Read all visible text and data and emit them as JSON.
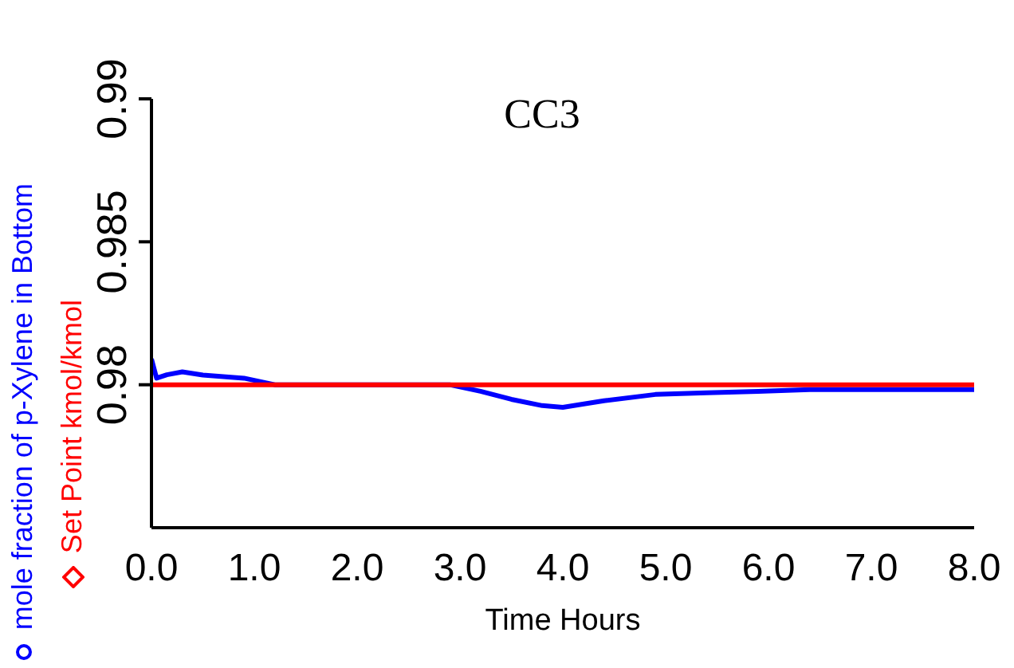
{
  "chart_data": {
    "type": "line",
    "title": "CC3",
    "xlabel": "Time Hours",
    "xlim": [
      0,
      8
    ],
    "xticks": [
      {
        "value": 0,
        "label": "0.0"
      },
      {
        "value": 1,
        "label": "1.0"
      },
      {
        "value": 2,
        "label": "2.0"
      },
      {
        "value": 3,
        "label": "3.0"
      },
      {
        "value": 4,
        "label": "4.0"
      },
      {
        "value": 5,
        "label": "5.0"
      },
      {
        "value": 6,
        "label": "6.0"
      },
      {
        "value": 7,
        "label": "7.0"
      },
      {
        "value": 8,
        "label": "8.0"
      }
    ],
    "ylim": [
      0.975,
      0.99
    ],
    "yticks": [
      0.98,
      0.985,
      0.99
    ],
    "legend": "left",
    "marker": "none",
    "series": [
      {
        "name": "mole fraction of p-Xylene in Bottom",
        "color": "#0000ff",
        "x": [
          0,
          0.05,
          0.15,
          0.3,
          0.5,
          0.9,
          1.2,
          2.9,
          3.2,
          3.5,
          3.8,
          4.0,
          4.4,
          4.9,
          5.4,
          5.9,
          6.4,
          8.0
        ],
        "values": [
          0.9809,
          0.98023,
          0.98035,
          0.98045,
          0.98034,
          0.98023,
          0.98,
          0.98,
          0.97977,
          0.97949,
          0.97927,
          0.97921,
          0.97944,
          0.97966,
          0.97972,
          0.97977,
          0.97983,
          0.97983
        ]
      },
      {
        "name": "Set Point kmol/kmol",
        "color": "#ff0000",
        "x": [
          0,
          8
        ],
        "values": [
          0.98,
          0.98
        ]
      }
    ]
  }
}
